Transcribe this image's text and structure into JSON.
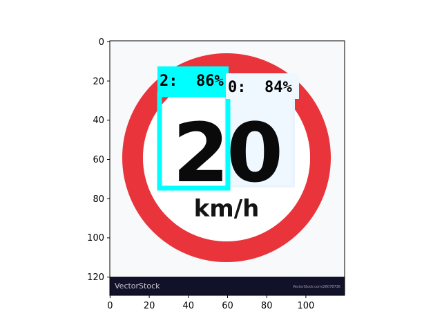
{
  "axes": {
    "x_ticks": [
      "0",
      "20",
      "40",
      "60",
      "80",
      "100"
    ],
    "y_ticks": [
      "0",
      "20",
      "40",
      "60",
      "80",
      "100",
      "120"
    ]
  },
  "image": {
    "sign_number": "20",
    "sign_unit": "km/h",
    "watermark_left": "VectorStock",
    "watermark_right": "VectorStock.com/26078736",
    "colors": {
      "ring": "#e8343a",
      "background": "#f8f9fb",
      "footer": "#12112a",
      "digits": "#0a0a0a"
    }
  },
  "detections": [
    {
      "label": "2:  86%",
      "color": "#00ffff"
    },
    {
      "label": "0:  84%",
      "color": "#f0f8ff"
    }
  ]
}
